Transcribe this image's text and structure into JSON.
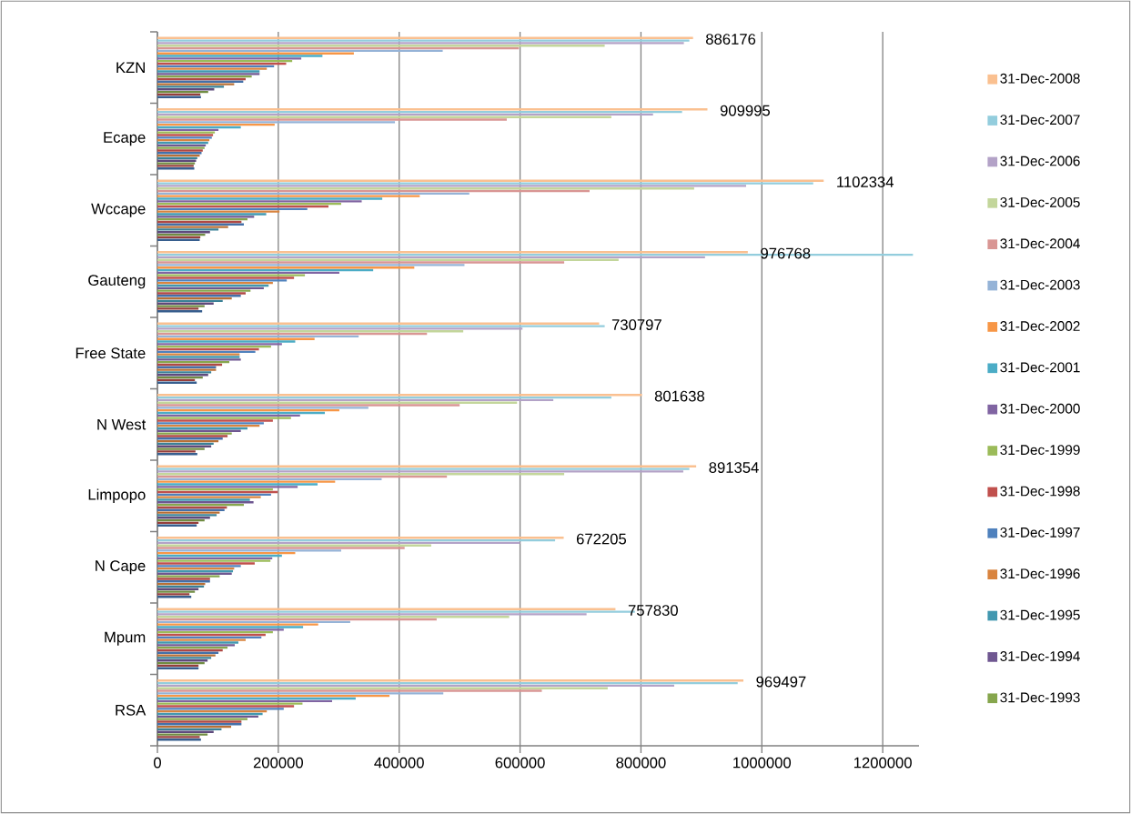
{
  "chart_data": {
    "type": "bar",
    "orientation": "horizontal",
    "categories": [
      "KZN",
      "Ecape",
      "Wccape",
      "Gauteng",
      "Free State",
      "N West",
      "Limpopo",
      "N Cape",
      "Mpum",
      "RSA"
    ],
    "xlim": [
      0,
      1260000
    ],
    "xticks": [
      0,
      200000,
      400000,
      600000,
      800000,
      1000000,
      1200000
    ],
    "grid": "x",
    "legend": "right",
    "series": [
      {
        "color": "#375E8E",
        "values": [
          72000,
          61000,
          70000,
          74000,
          65000,
          66000,
          65000,
          56000,
          68000,
          72000
        ]
      },
      {
        "color": "#963E3B",
        "values": [
          71000,
          60000,
          71000,
          68000,
          62000,
          63000,
          68000,
          53000,
          68000,
          70000
        ]
      },
      {
        "color": "#708C42",
        "values": [
          84000,
          62000,
          79000,
          78000,
          75000,
          78000,
          78000,
          62000,
          78000,
          83000
        ]
      },
      {
        "color": "#5E4A7C",
        "values": [
          94000,
          64000,
          87000,
          93000,
          84000,
          89000,
          87000,
          68000,
          83000,
          93000
        ]
      },
      {
        "color": "#3A8197",
        "values": [
          110000,
          66000,
          101000,
          108000,
          89000,
          93000,
          98000,
          77000,
          89000,
          106000
        ]
      },
      {
        "color": "#B86F35",
        "values": [
          127000,
          70000,
          117000,
          123000,
          97000,
          101000,
          103000,
          79000,
          96000,
          122000
        ]
      },
      {
        "color": "#4470A8",
        "values": [
          142000,
          73000,
          143000,
          138000,
          97000,
          108000,
          111000,
          87000,
          101000,
          139000
        ]
      },
      {
        "color": "#B04844",
        "values": [
          146000,
          75000,
          139000,
          146000,
          107000,
          116000,
          115000,
          87000,
          108000,
          139000
        ]
      },
      {
        "name": "31-Dec-1993",
        "color": "#86A64D",
        "values": [
          156000,
          78000,
          149000,
          154000,
          119000,
          123000,
          143000,
          103000,
          116000,
          149000
        ]
      },
      {
        "name": "31-Dec-1994",
        "color": "#6F5791",
        "values": [
          169000,
          80000,
          160000,
          176000,
          138000,
          138000,
          159000,
          123000,
          128000,
          167000
        ]
      },
      {
        "name": "31-Dec-1995",
        "color": "#4298B0",
        "values": [
          169000,
          84000,
          180000,
          184000,
          136000,
          149000,
          153000,
          125000,
          134000,
          174000
        ]
      },
      {
        "name": "31-Dec-1996",
        "color": "#D9843F",
        "values": [
          181000,
          86000,
          202000,
          191000,
          136000,
          169000,
          171000,
          127000,
          146000,
          181000
        ]
      },
      {
        "name": "31-Dec-1997",
        "color": "#4F81BD",
        "values": [
          193000,
          90000,
          248000,
          214000,
          162000,
          176000,
          188000,
          138000,
          172000,
          209000
        ]
      },
      {
        "name": "31-Dec-1998",
        "color": "#C0504D",
        "values": [
          213000,
          92000,
          283000,
          226000,
          168000,
          191000,
          199000,
          161000,
          179000,
          226000
        ]
      },
      {
        "name": "31-Dec-1999",
        "color": "#9BBB59",
        "values": [
          223000,
          95000,
          304000,
          244000,
          188000,
          221000,
          191000,
          187000,
          191000,
          240000
        ]
      },
      {
        "name": "31-Dec-2000",
        "color": "#8064A2",
        "values": [
          238000,
          101000,
          338000,
          301000,
          206000,
          236000,
          232000,
          190000,
          209000,
          289000
        ]
      },
      {
        "name": "31-Dec-2001",
        "color": "#4BACC6",
        "values": [
          273000,
          138000,
          372000,
          357000,
          228000,
          277000,
          265000,
          206000,
          241000,
          328000
        ]
      },
      {
        "name": "31-Dec-2002",
        "color": "#F79646",
        "values": [
          325000,
          194000,
          434000,
          425000,
          260000,
          301000,
          294000,
          228000,
          266000,
          384000
        ]
      },
      {
        "name": "31-Dec-2003",
        "color": "#95B3D7",
        "values": [
          472000,
          393000,
          516000,
          508000,
          333000,
          349000,
          371000,
          304000,
          319000,
          473000
        ]
      },
      {
        "name": "31-Dec-2004",
        "color": "#D99694",
        "values": [
          598000,
          578000,
          715000,
          673000,
          446000,
          500000,
          479000,
          409000,
          462000,
          636000
        ]
      },
      {
        "name": "31-Dec-2005",
        "color": "#C3D69B",
        "values": [
          740000,
          751000,
          888000,
          763000,
          506000,
          595000,
          673000,
          453000,
          582000,
          745000
        ]
      },
      {
        "name": "31-Dec-2006",
        "color": "#B3A2C7",
        "values": [
          871000,
          820000,
          974000,
          906000,
          604000,
          655000,
          870000,
          600000,
          710000,
          855000
        ]
      },
      {
        "name": "31-Dec-2007",
        "color": "#93CDDD",
        "values": [
          880000,
          868000,
          1085000,
          1250000,
          740000,
          751000,
          880000,
          658000,
          790000,
          960000
        ]
      },
      {
        "name": "31-Dec-2008",
        "color": "#FAC090",
        "values": [
          886176,
          909995,
          1102334,
          976768,
          730797,
          801638,
          891354,
          672205,
          757830,
          969497
        ],
        "value_labels": [
          "886176",
          "909995",
          "1102334",
          "976768",
          "730797",
          "801638",
          "891354",
          "672205",
          "757830",
          "969497"
        ]
      }
    ]
  }
}
